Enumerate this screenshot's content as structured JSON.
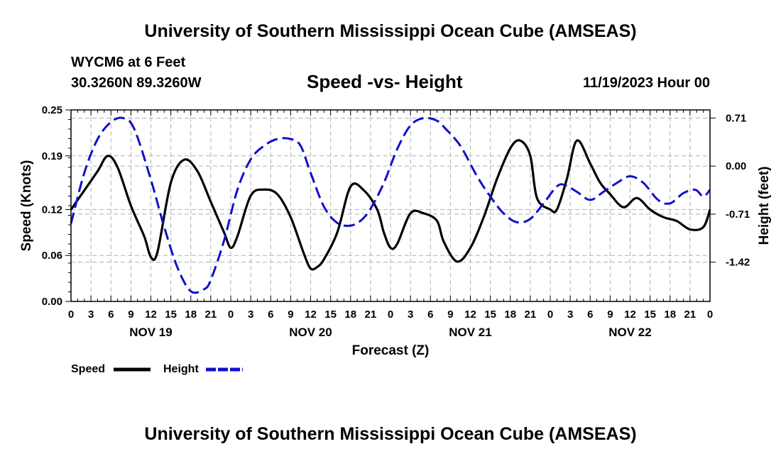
{
  "header": {
    "title": "University of Southern Mississippi Ocean Cube (AMSEAS)",
    "station": "WYCM6 at 6 Feet",
    "coordinates": "30.3260N  89.3260W",
    "subtitle": "Speed -vs- Height",
    "date": "11/19/2023 Hour 00"
  },
  "footer": {
    "title": "University of Southern Mississippi Ocean Cube (AMSEAS)"
  },
  "chart_data": {
    "type": "line",
    "title": "Speed -vs- Height",
    "xlabel": "Forecast (Z)",
    "ylabel_left": "Speed (Knots)",
    "ylabel_right": "Height (feet)",
    "xlim": [
      0,
      96
    ],
    "ylim_left": [
      0,
      0.25
    ],
    "ylim_right": [
      -2.0,
      0.83
    ],
    "hour_ticks": [
      "0",
      "3",
      "6",
      "9",
      "12",
      "15",
      "18",
      "21",
      "0",
      "3",
      "6",
      "9",
      "12",
      "15",
      "18",
      "21",
      "0",
      "3",
      "6",
      "9",
      "12",
      "15",
      "18",
      "21",
      "0",
      "3",
      "6",
      "9",
      "12",
      "15",
      "18",
      "21",
      "0"
    ],
    "day_labels": [
      "NOV 19",
      "NOV 20",
      "NOV 21",
      "NOV 22"
    ],
    "yticks_left": [
      "0.00",
      "0.06",
      "0.12",
      "0.19",
      "0.25"
    ],
    "yticks_right": [
      "-1.42",
      "-0.71",
      "0.00",
      "0.71"
    ],
    "grid": true,
    "legend": [
      "Speed",
      "Height"
    ],
    "series": [
      {
        "name": "Speed",
        "axis": "left",
        "color": "#000000",
        "x": [
          0,
          2,
          4,
          5.5,
          7,
          9,
          11,
          12,
          13,
          15,
          17,
          19,
          21,
          23,
          24,
          25,
          27,
          29,
          31,
          33,
          35,
          36,
          37,
          38,
          40,
          42,
          44,
          46,
          47,
          48,
          49,
          51,
          53,
          55,
          56,
          58,
          60,
          62,
          64,
          66,
          67.5,
          69,
          70,
          72,
          73,
          74.5,
          76,
          78,
          79.5,
          81,
          83,
          85,
          87,
          89,
          91,
          93,
          95,
          96
        ],
        "values": [
          0.12,
          0.145,
          0.17,
          0.19,
          0.175,
          0.125,
          0.085,
          0.058,
          0.065,
          0.155,
          0.185,
          0.17,
          0.13,
          0.09,
          0.07,
          0.085,
          0.138,
          0.146,
          0.14,
          0.11,
          0.062,
          0.043,
          0.045,
          0.055,
          0.09,
          0.15,
          0.145,
          0.12,
          0.09,
          0.07,
          0.075,
          0.115,
          0.115,
          0.105,
          0.078,
          0.052,
          0.07,
          0.11,
          0.16,
          0.2,
          0.21,
          0.19,
          0.135,
          0.12,
          0.12,
          0.16,
          0.21,
          0.18,
          0.155,
          0.14,
          0.123,
          0.135,
          0.12,
          0.11,
          0.105,
          0.094,
          0.097,
          0.12
        ]
      },
      {
        "name": "Height",
        "axis": "right",
        "color": "#1010cc",
        "x": [
          0,
          2,
          4,
          6,
          7.8,
          9.5,
          12,
          14,
          16,
          18,
          20,
          21,
          23,
          25,
          27,
          29,
          31,
          33,
          34.5,
          36,
          38,
          40,
          42,
          43.6,
          45,
          47,
          49,
          51,
          53,
          55,
          56.2,
          58.5,
          61,
          63,
          65,
          67,
          69,
          71,
          73,
          74.2,
          76,
          78,
          80,
          82,
          84,
          86,
          88.2,
          90,
          92,
          93.8,
          95,
          96
        ],
        "values": [
          -0.85,
          -0.1,
          0.4,
          0.65,
          0.71,
          0.55,
          -0.2,
          -0.9,
          -1.5,
          -1.85,
          -1.82,
          -1.68,
          -1.1,
          -0.35,
          0.1,
          0.3,
          0.4,
          0.4,
          0.3,
          -0.1,
          -0.6,
          -0.84,
          -0.88,
          -0.8,
          -0.63,
          -0.25,
          0.25,
          0.6,
          0.71,
          0.67,
          0.56,
          0.3,
          -0.15,
          -0.45,
          -0.7,
          -0.83,
          -0.78,
          -0.55,
          -0.3,
          -0.28,
          -0.38,
          -0.5,
          -0.38,
          -0.25,
          -0.15,
          -0.25,
          -0.5,
          -0.55,
          -0.4,
          -0.35,
          -0.45,
          -0.35
        ]
      }
    ]
  }
}
